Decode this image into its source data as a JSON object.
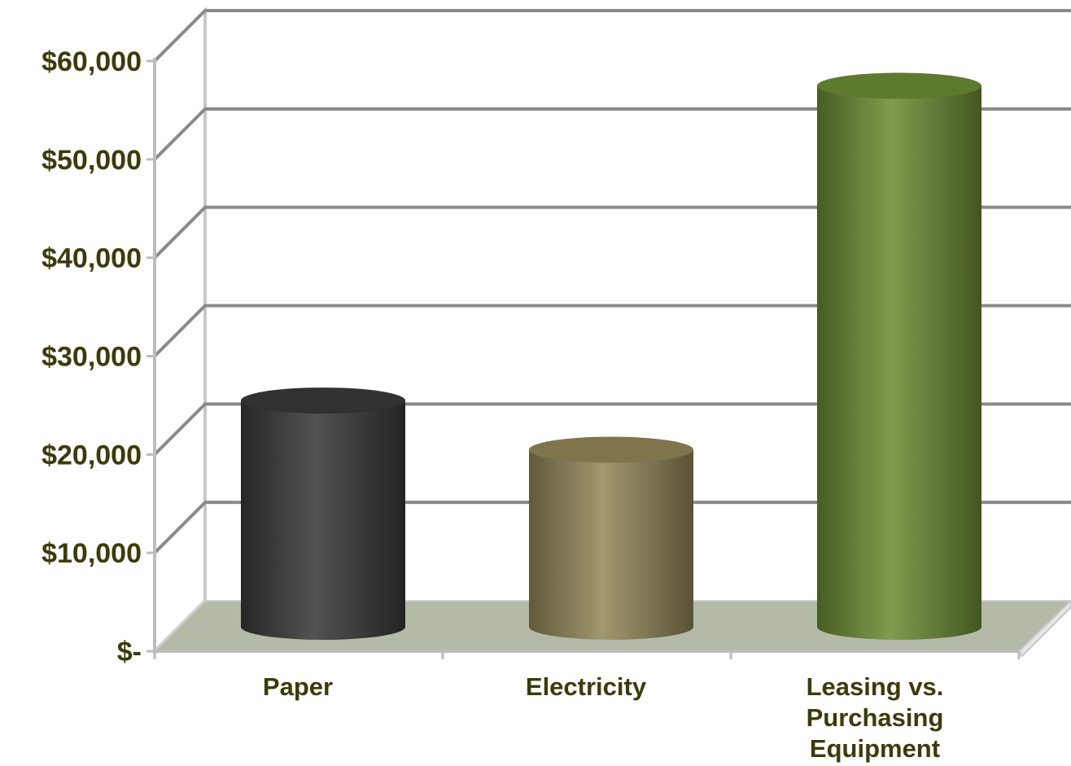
{
  "chart_data": {
    "type": "bar",
    "style": "3d-cylinder",
    "categories": [
      "Paper",
      "Electricity",
      "Leasing vs. Purchasing Equipment"
    ],
    "category_label_lines": [
      [
        "Paper"
      ],
      [
        "Electricity"
      ],
      [
        "Leasing vs.",
        "Purchasing",
        "Equipment"
      ]
    ],
    "values": [
      23000,
      18000,
      55000
    ],
    "colors": [
      "#3a3a3a",
      "#948a5a",
      "#6f8f36"
    ],
    "yticks": [
      0,
      10000,
      20000,
      30000,
      40000,
      50000,
      60000
    ],
    "ytick_labels": [
      "$-",
      "$10,000",
      "$20,000",
      "$30,000",
      "$40,000",
      "$50,000",
      "$60,000"
    ],
    "ylim": [
      0,
      60000
    ],
    "title": "",
    "xlabel": "",
    "ylabel": "",
    "grid": true,
    "floor_color": "#b5b9a8",
    "legend": "none"
  }
}
